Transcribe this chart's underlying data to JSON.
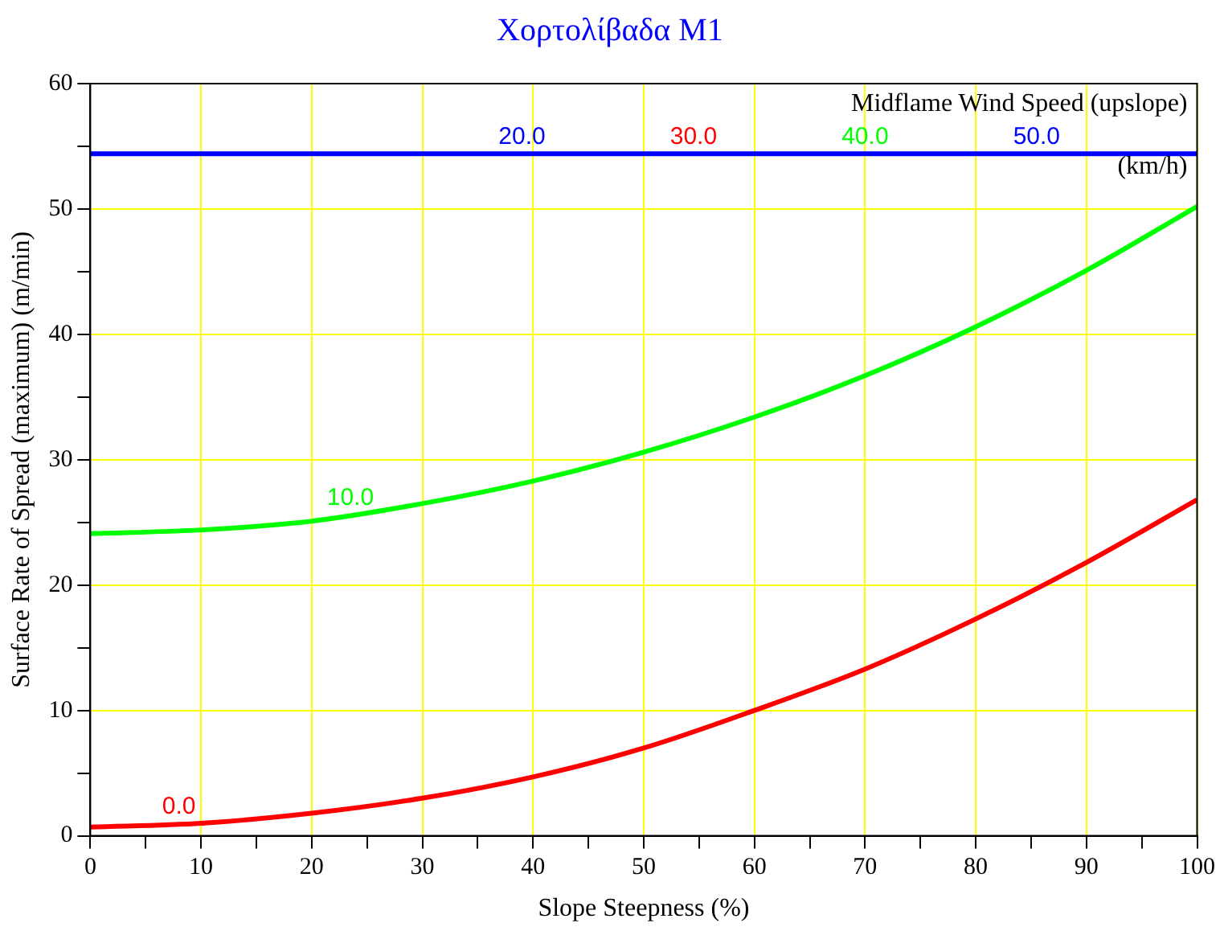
{
  "chart_data": {
    "type": "line",
    "title": "Χορτολίβαδα M1",
    "xlabel": "Slope Steepness (%)",
    "ylabel": "Surface Rate of Spread (maximum) (m/min)",
    "legend_title": "Midflame Wind Speed (upslope)",
    "annotations": [
      "(km/h)"
    ],
    "x": [
      0,
      10,
      20,
      30,
      40,
      50,
      60,
      70,
      80,
      90,
      100
    ],
    "series": [
      {
        "name": "0.0",
        "color": "#ff0000",
        "values": [
          0.7,
          1.0,
          1.8,
          3.0,
          4.7,
          7.0,
          10.0,
          13.3,
          17.3,
          21.8,
          26.8
        ]
      },
      {
        "name": "10.0",
        "color": "#00ff00",
        "values": [
          24.1,
          24.4,
          25.1,
          26.5,
          28.3,
          30.6,
          33.4,
          36.7,
          40.6,
          45.1,
          50.2
        ]
      },
      {
        "name": "20.0",
        "color": "#0000ff",
        "values": [
          54.4,
          54.4,
          54.4,
          54.4,
          54.4,
          54.4,
          54.4,
          54.4,
          54.4,
          54.4,
          54.4
        ]
      },
      {
        "name": "30.0",
        "color": "#ff0000",
        "values": [
          null,
          null,
          null,
          null,
          null,
          null,
          null,
          null,
          null,
          null,
          null
        ]
      },
      {
        "name": "40.0",
        "color": "#00ff00",
        "values": [
          null,
          null,
          null,
          null,
          null,
          null,
          null,
          null,
          null,
          null,
          null
        ]
      },
      {
        "name": "50.0",
        "color": "#0000ff",
        "values": [
          null,
          null,
          null,
          null,
          null,
          null,
          null,
          null,
          null,
          null,
          null
        ]
      }
    ],
    "xlim": [
      0,
      100
    ],
    "ylim": [
      0,
      60
    ],
    "xticks": [
      0,
      {
        "value": 5,
        "label": null
      },
      10,
      {
        "value": 15,
        "label": null
      },
      20,
      {
        "value": 25,
        "label": null
      },
      30,
      {
        "value": 35,
        "label": null
      },
      40,
      {
        "value": 45,
        "label": null
      },
      50,
      {
        "value": 55,
        "label": null
      },
      60,
      {
        "value": 65,
        "label": null
      },
      70,
      {
        "value": 75,
        "label": null
      },
      80,
      {
        "value": 85,
        "label": null
      },
      90,
      {
        "value": 95,
        "label": null
      },
      100
    ],
    "yticks": [
      0,
      {
        "value": 5,
        "label": null
      },
      10,
      {
        "value": 15,
        "label": null
      },
      20,
      {
        "value": 25,
        "label": null
      },
      30,
      {
        "value": 35,
        "label": null
      },
      40,
      {
        "value": 45,
        "label": null
      },
      50,
      {
        "value": 55,
        "label": null
      },
      60
    ],
    "grid": true,
    "legend": false,
    "marker": "none",
    "line_style": "solid"
  }
}
